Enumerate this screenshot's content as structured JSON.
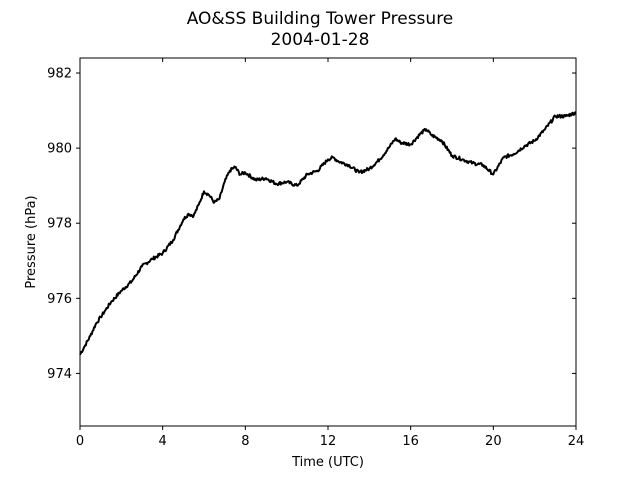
{
  "chart_data": {
    "type": "line",
    "title": "AO&SS Building Tower Pressure",
    "subtitle": "2004-01-28",
    "xlabel": "Time (UTC)",
    "ylabel": "Pressure (hPa)",
    "xlim": [
      0,
      24
    ],
    "ylim": [
      972.6,
      982.4
    ],
    "xticks": [
      0,
      4,
      8,
      12,
      16,
      20,
      24
    ],
    "yticks": [
      974,
      976,
      978,
      980,
      982
    ],
    "grid": false,
    "line_color": "#000000",
    "series": [
      {
        "x": [
          0,
          0.25,
          0.5,
          0.75,
          1,
          1.25,
          1.5,
          2,
          2.5,
          3,
          3.5,
          4,
          4.5,
          5,
          5.25,
          5.5,
          5.75,
          6,
          6.25,
          6.5,
          6.75,
          7,
          7.25,
          7.5,
          7.75,
          8,
          8.5,
          9,
          9.5,
          10,
          10.5,
          11,
          11.5,
          12,
          12.25,
          12.5,
          13,
          13.5,
          14,
          14.5,
          15,
          15.25,
          15.5,
          16,
          16.5,
          16.75,
          17,
          17.5,
          18,
          18.5,
          19,
          19.5,
          20,
          20.5,
          21,
          21.5,
          22,
          22.5,
          23,
          23.5,
          24
        ],
        "y": [
          974.5,
          974.75,
          975.0,
          975.3,
          975.5,
          975.7,
          975.9,
          976.2,
          976.45,
          976.85,
          977.05,
          977.2,
          977.55,
          978.1,
          978.25,
          978.2,
          978.5,
          978.85,
          978.75,
          978.55,
          978.65,
          979.1,
          979.4,
          979.5,
          979.3,
          979.35,
          979.15,
          979.2,
          979.05,
          979.1,
          979.0,
          979.3,
          979.4,
          979.7,
          979.75,
          979.65,
          979.55,
          979.35,
          979.45,
          979.7,
          980.05,
          980.25,
          980.15,
          980.1,
          980.4,
          980.5,
          980.35,
          980.2,
          979.8,
          979.7,
          979.6,
          979.55,
          979.3,
          979.75,
          979.85,
          980.05,
          980.2,
          980.5,
          980.85,
          980.85,
          980.95
        ]
      }
    ]
  }
}
